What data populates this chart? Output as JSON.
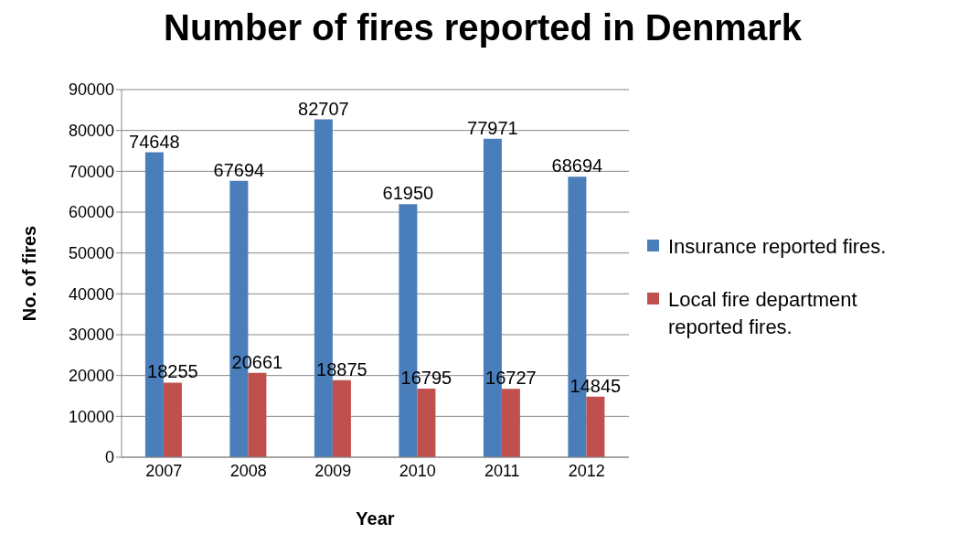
{
  "chart_data": {
    "type": "bar",
    "title": "Number of fires reported in Denmark",
    "xlabel": "Year",
    "ylabel": "No. of fires",
    "categories": [
      "2007",
      "2008",
      "2009",
      "2010",
      "2011",
      "2012"
    ],
    "series": [
      {
        "name": "Insurance reported fires.",
        "color": "#4a7ebb",
        "values": [
          74648,
          67694,
          82707,
          61950,
          77971,
          68694
        ]
      },
      {
        "name": "Local fire department reported fires.",
        "color": "#c0504d",
        "values": [
          18255,
          20661,
          18875,
          16795,
          16727,
          14845
        ]
      }
    ],
    "ylim": [
      0,
      90000
    ],
    "yticks": [
      0,
      10000,
      20000,
      30000,
      40000,
      50000,
      60000,
      70000,
      80000,
      90000
    ],
    "grid": "y",
    "legend": "right",
    "data_labels": true
  }
}
